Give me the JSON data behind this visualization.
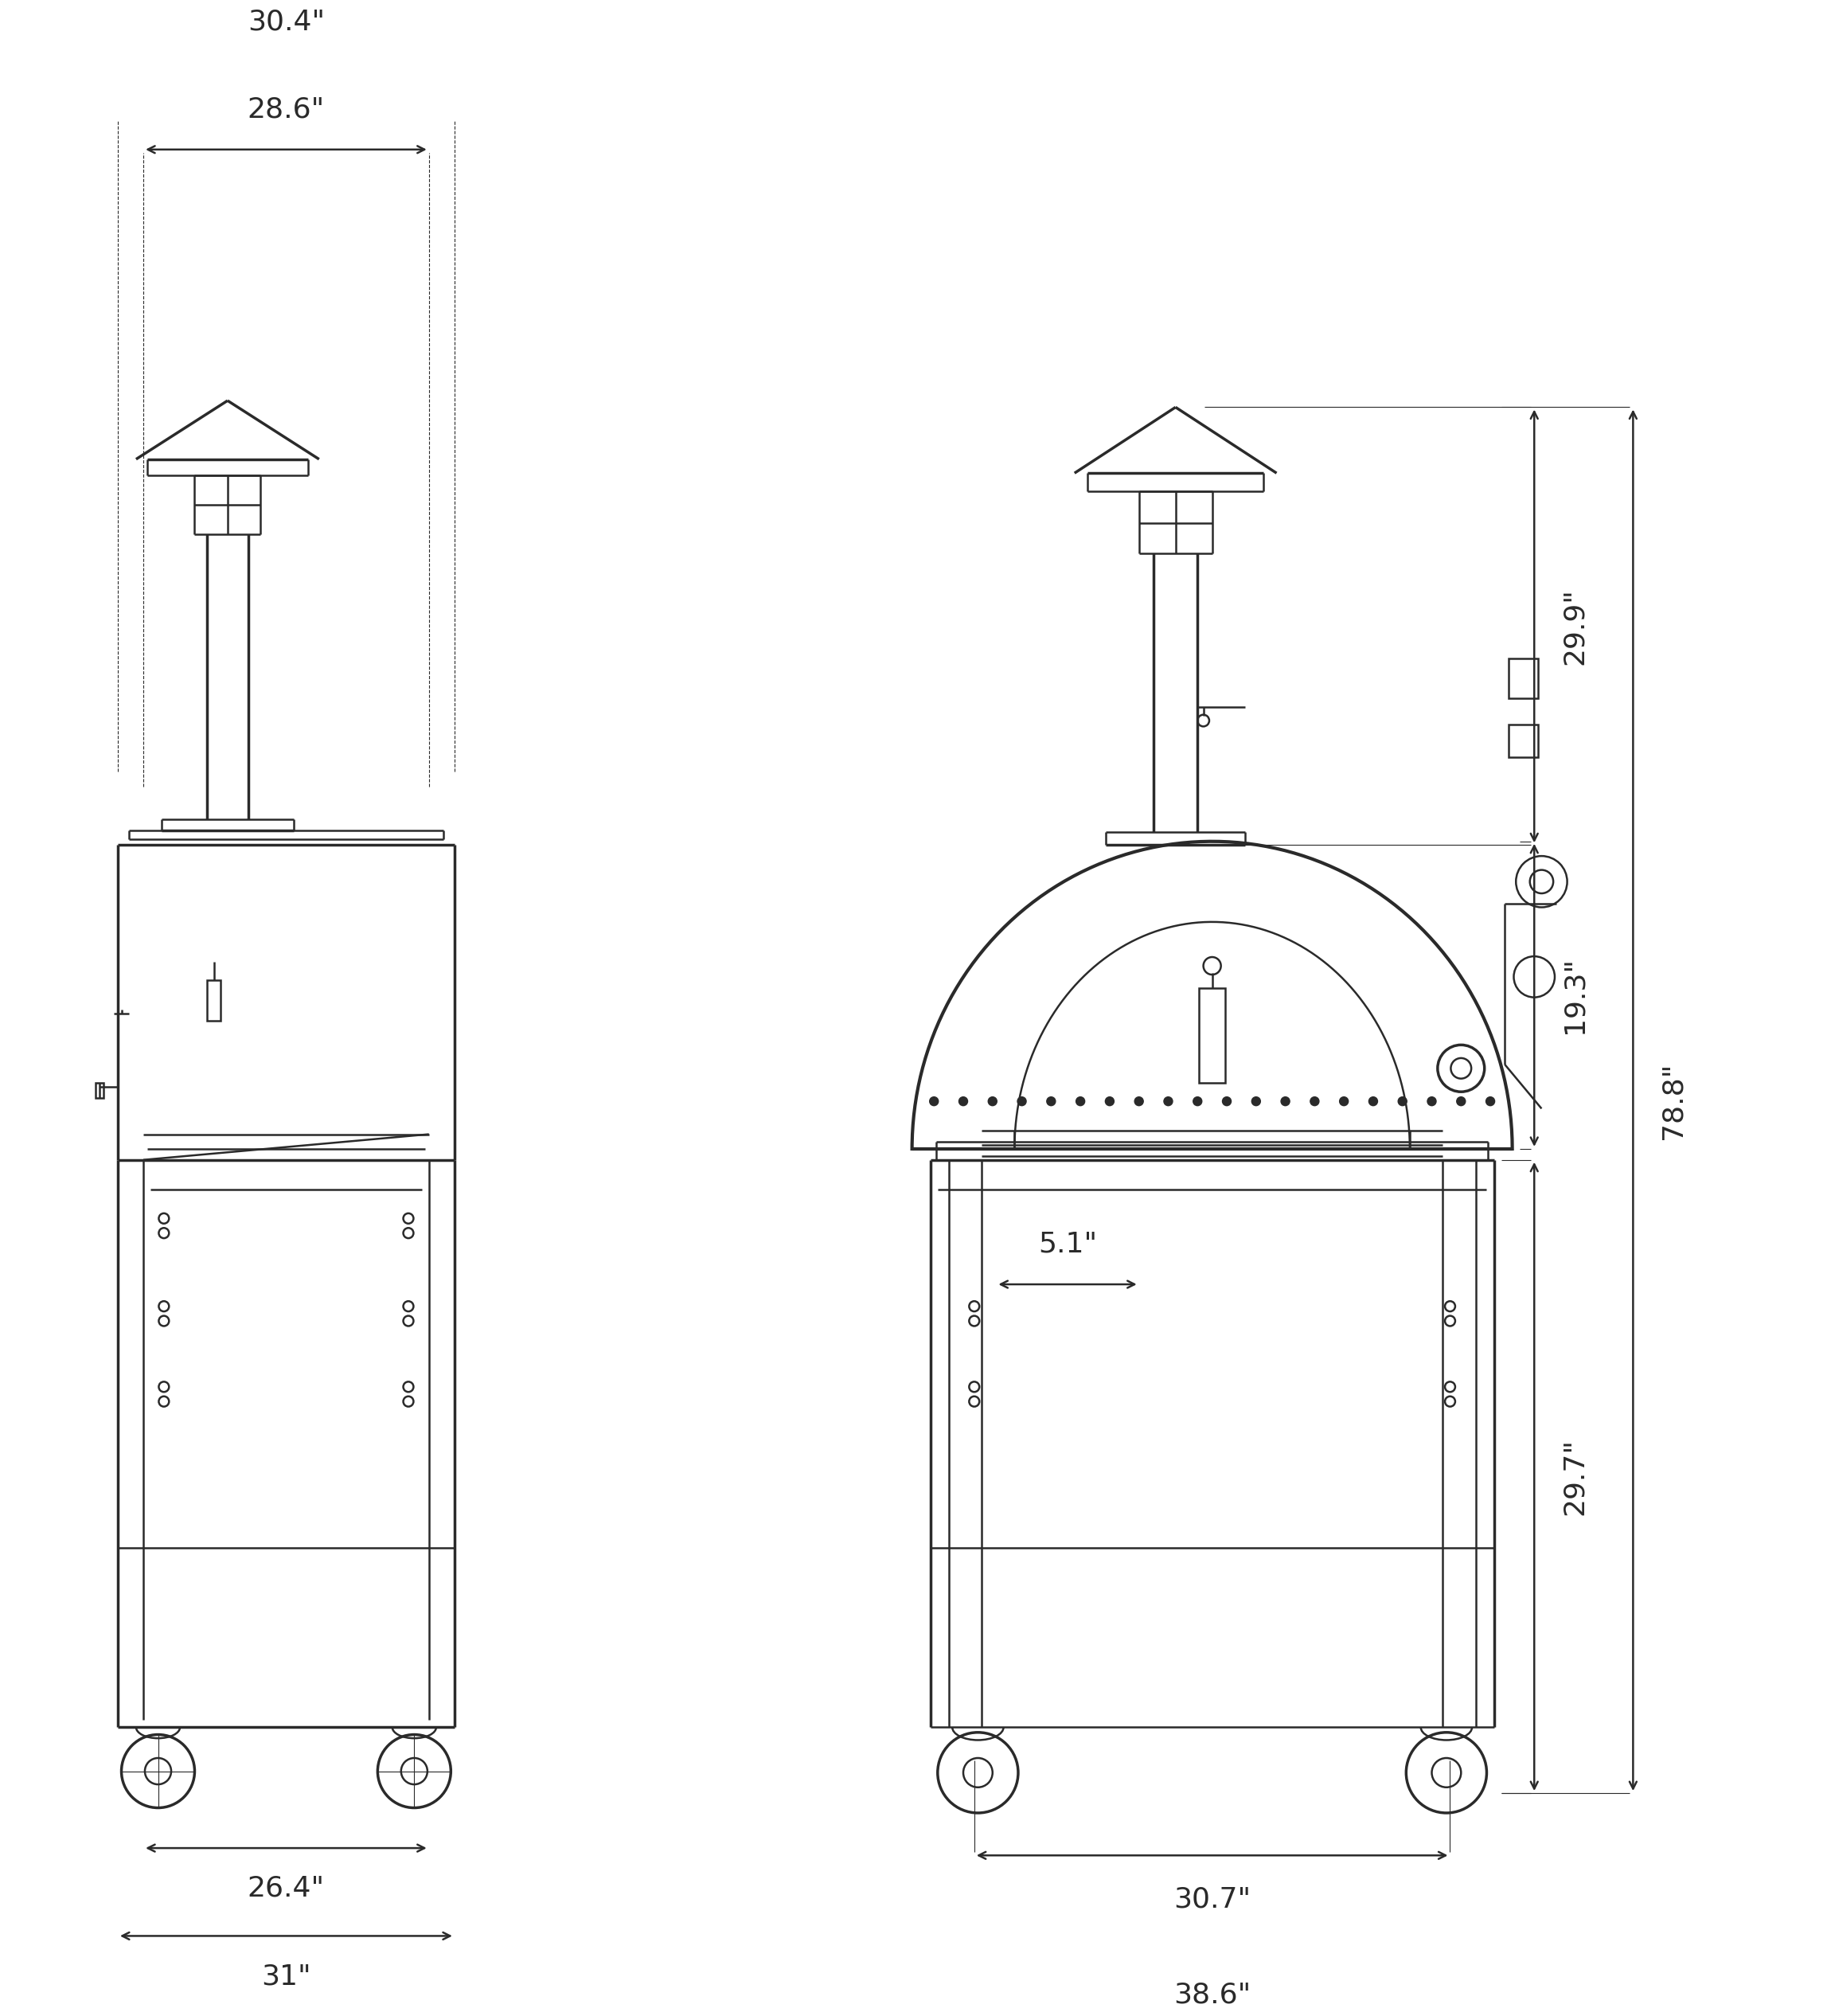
{
  "bg_color": "#ffffff",
  "lc": "#2a2a2a",
  "lw": 1.8,
  "lw2": 2.5,
  "lw3": 3.0,
  "fs": 26,
  "dimensions": {
    "top_30_4": "30.4\"",
    "top_28_6": "28.6\"",
    "right_29_9": "29.9\"",
    "right_78_8": "78.8\"",
    "right_19_3": "19.3\"",
    "right_29_7": "29.7\"",
    "bottom_5_1": "5.1\"",
    "bottom_30_7": "30.7\"",
    "bottom_38_6": "38.6\"",
    "bottom_26_4": "26.4\"",
    "bottom_31": "31\""
  }
}
